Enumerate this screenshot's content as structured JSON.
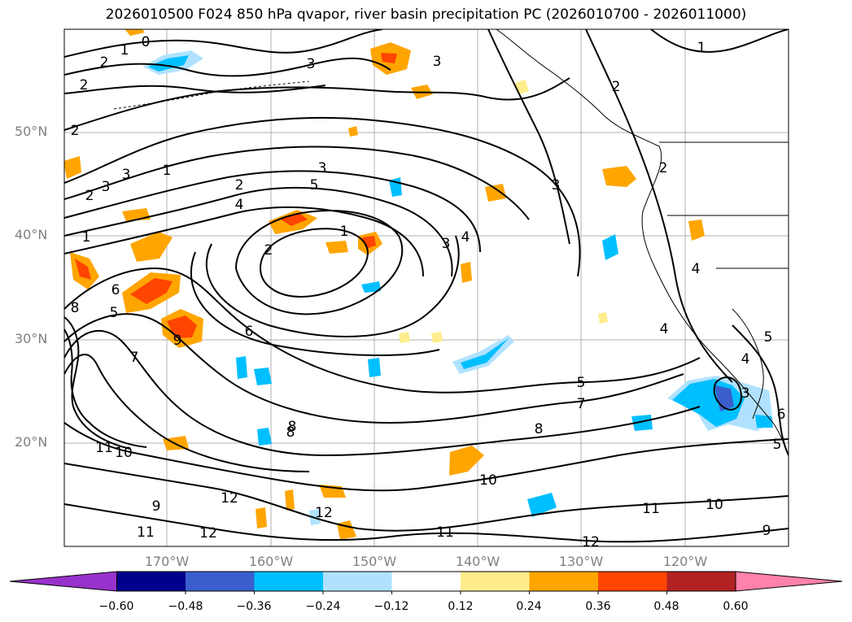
{
  "title": "2026010500 F024 850 hPa qvapor, river basin precipitation PC (2026010700 - 2026011000)",
  "latitude_labels": [
    "50°N",
    "40°N",
    "30°N",
    "20°N"
  ],
  "longitude_labels": [
    "170°W",
    "160°W",
    "150°W",
    "140°W",
    "130°W",
    "120°W"
  ],
  "colorbar": {
    "tick_labels": [
      "−0.60",
      "−0.48",
      "−0.36",
      "−0.24",
      "−0.12",
      "0.12",
      "0.24",
      "0.36",
      "0.48",
      "0.60"
    ],
    "colors": [
      "#9932cc",
      "#00008b",
      "#3a5fcd",
      "#00bfff",
      "#b0e2ff",
      "#ffffff",
      "#ffec8b",
      "#ffa500",
      "#ff4500",
      "#b22222",
      "#ff82ab"
    ]
  },
  "contour_labels": [
    "0",
    "1",
    "2",
    "2",
    "3",
    "3",
    "2",
    "2",
    "3",
    "3",
    "1",
    "2",
    "4",
    "5",
    "3",
    "4",
    "1",
    "2",
    "1",
    "2",
    "3",
    "4",
    "3",
    "2",
    "6",
    "8",
    "5",
    "9",
    "7",
    "6",
    "11",
    "10",
    "8",
    "8",
    "7",
    "5",
    "3",
    "8",
    "12",
    "9",
    "11",
    "12",
    "12",
    "11",
    "10",
    "11",
    "10",
    "9",
    "12",
    "5",
    "6",
    "5",
    "4",
    "4",
    "1"
  ]
}
